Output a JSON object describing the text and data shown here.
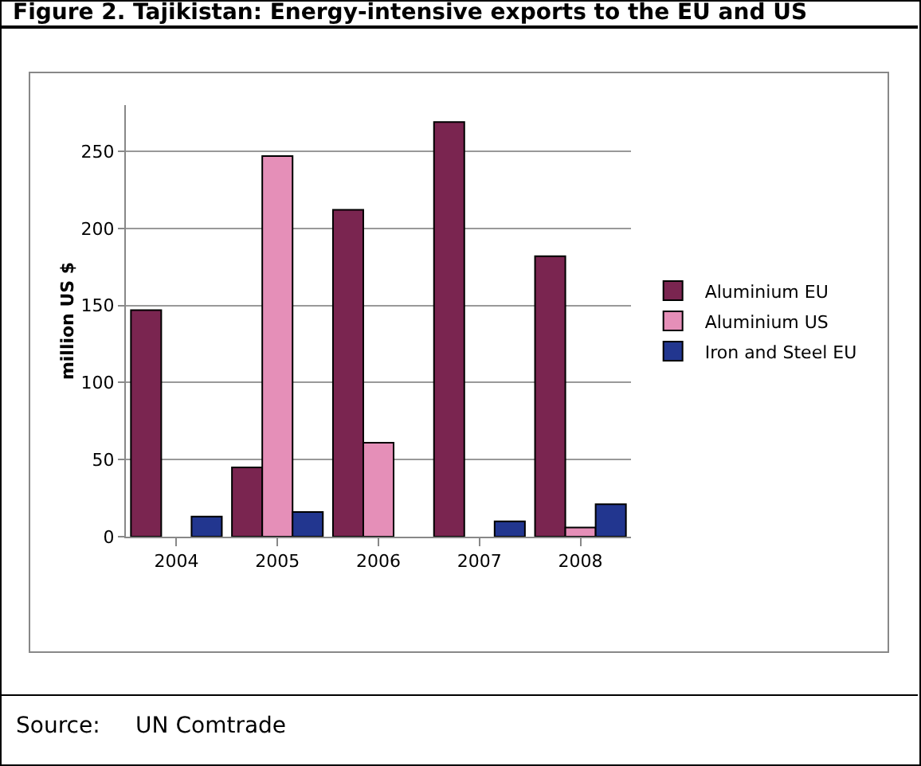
{
  "chart_data": {
    "type": "bar",
    "title": "Figure 2.   Tajikistan: Energy-intensive exports to the EU and US",
    "ylabel": "million US $",
    "categories": [
      "2004",
      "2005",
      "2006",
      "2007",
      "2008"
    ],
    "series": [
      {
        "name": "Aluminium EU",
        "color": "#7a2550",
        "values": [
          147,
          45,
          212,
          269,
          182
        ]
      },
      {
        "name": "Aluminium US",
        "color": "#e58fb8",
        "values": [
          null,
          247,
          61,
          null,
          6
        ]
      },
      {
        "name": "Iron and Steel EU",
        "color": "#22368f",
        "values": [
          13,
          16,
          null,
          10,
          21
        ]
      }
    ],
    "ylim": [
      0,
      280
    ],
    "yticks": [
      0,
      50,
      100,
      150,
      200,
      250
    ],
    "grid": "y",
    "legend": "right",
    "annotations": [
      "Source:     UN Comtrade"
    ]
  }
}
